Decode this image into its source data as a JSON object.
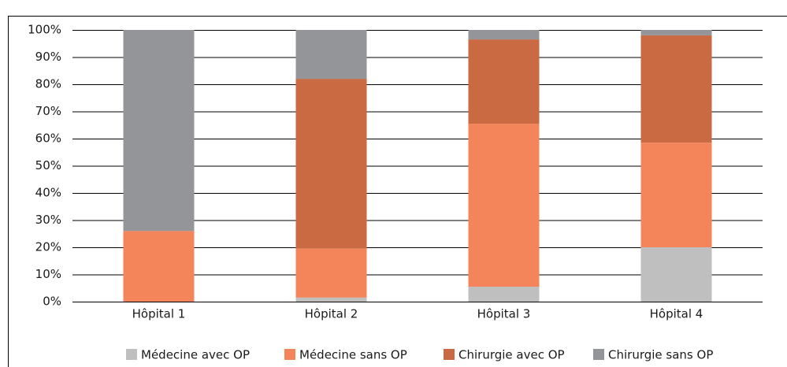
{
  "chart_data": {
    "type": "stacked_bar",
    "categories": [
      "Hôpital 1",
      "Hôpital 2",
      "Hôpital 3",
      "Hôpital 4"
    ],
    "series": [
      {
        "name": "Médecine avec OP",
        "color": "#bfbfbf",
        "values": [
          0,
          1.5,
          5.5,
          20
        ]
      },
      {
        "name": "Médecine sans OP",
        "color": "#f4855a",
        "values": [
          26,
          18,
          60,
          38.5
        ]
      },
      {
        "name": "Chirurgie avec OP",
        "color": "#c96a43",
        "values": [
          0,
          62.5,
          31,
          39.5
        ]
      },
      {
        "name": "Chirurgie sans OP",
        "color": "#939598",
        "values": [
          74,
          18,
          3.5,
          2
        ]
      }
    ],
    "ylim": [
      0,
      100
    ],
    "yticks": [
      {
        "value": 0,
        "label": "0%"
      },
      {
        "value": 10,
        "label": "10%"
      },
      {
        "value": 20,
        "label": "20%"
      },
      {
        "value": 30,
        "label": "30%"
      },
      {
        "value": 40,
        "label": "40%"
      },
      {
        "value": 50,
        "label": "50%"
      },
      {
        "value": 60,
        "label": "60%"
      },
      {
        "value": 70,
        "label": "70%"
      },
      {
        "value": 80,
        "label": "80%"
      },
      {
        "value": 90,
        "label": "90%"
      },
      {
        "value": 100,
        "label": "100%"
      }
    ],
    "grid": true,
    "legend": "bottom"
  }
}
